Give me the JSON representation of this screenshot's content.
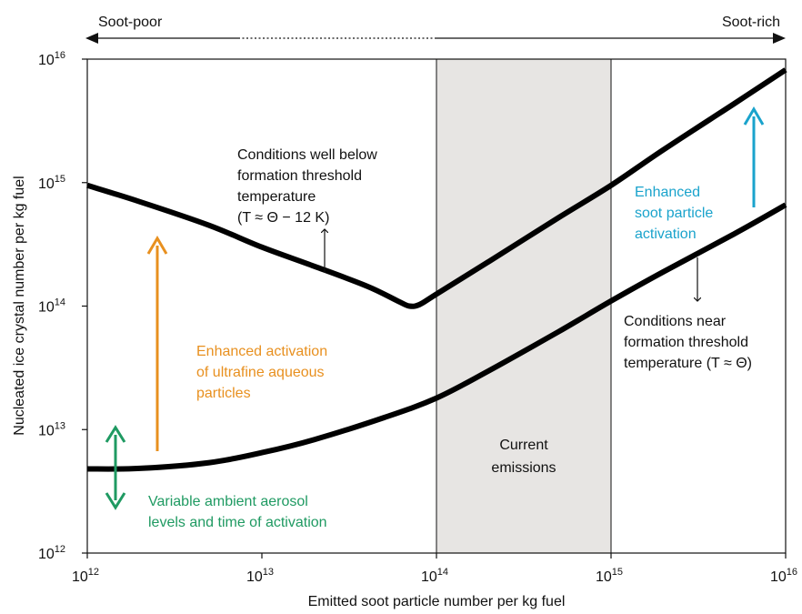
{
  "chart_data": {
    "type": "line",
    "xlabel": "Emitted soot particle number per kg fuel",
    "ylabel": "Nucleated ice crystal number per kg fuel",
    "x_scale": "log",
    "y_scale": "log",
    "xlim": [
      1000000000000.0,
      1e+16
    ],
    "ylim": [
      1000000000000.0,
      1e+16
    ],
    "grid": false,
    "x_ticks": [
      {
        "value": 1000000000000.0,
        "base": "10",
        "exp": "12"
      },
      {
        "value": 10000000000000.0,
        "base": "10",
        "exp": "13"
      },
      {
        "value": 100000000000000.0,
        "base": "10",
        "exp": "14"
      },
      {
        "value": 1000000000000000.0,
        "base": "10",
        "exp": "15"
      },
      {
        "value": 1e+16,
        "base": "10",
        "exp": "16"
      }
    ],
    "y_ticks": [
      {
        "value": 1000000000000.0,
        "base": "10",
        "exp": "12"
      },
      {
        "value": 10000000000000.0,
        "base": "10",
        "exp": "13"
      },
      {
        "value": 100000000000000.0,
        "base": "10",
        "exp": "14"
      },
      {
        "value": 1000000000000000.0,
        "base": "10",
        "exp": "15"
      },
      {
        "value": 1e+16,
        "base": "10",
        "exp": "16"
      }
    ],
    "series": [
      {
        "color": "#000000",
        "x": [
          1000000000000.0,
          2000000000000.0,
          5000000000000.0,
          10000000000000.0,
          20000000000000.0,
          40000000000000.0,
          60000000000000.0,
          70000000000000.0,
          80000000000000.0,
          100000000000000.0,
          200000000000000.0,
          500000000000000.0,
          1000000000000000.0,
          2000000000000000.0,
          5000000000000000.0,
          1e+16
        ],
        "y": [
          950000000000000.0,
          700000000000000.0,
          450000000000000.0,
          300000000000000.0,
          210000000000000.0,
          145000000000000.0,
          110000000000000.0,
          100000000000000.0,
          103000000000000.0,
          125000000000000.0,
          230000000000000.0,
          520000000000000.0,
          950000000000000.0,
          1850000000000000.0,
          4300000000000000.0,
          8200000000000000.0
        ]
      },
      {
        "color": "#000000",
        "x": [
          1000000000000.0,
          2000000000000.0,
          5000000000000.0,
          10000000000000.0,
          20000000000000.0,
          50000000000000.0,
          100000000000000.0,
          200000000000000.0,
          500000000000000.0,
          1000000000000000.0,
          2000000000000000.0,
          5000000000000000.0,
          1e+16
        ],
        "y": [
          4800000000000.0,
          4850000000000.0,
          5400000000000.0,
          6500000000000.0,
          8300000000000.0,
          12500000000000.0,
          18000000000000.0,
          30000000000000.0,
          62000000000000.0,
          110000000000000.0,
          190000000000000.0,
          380000000000000.0,
          660000000000000.0
        ]
      }
    ],
    "shaded_region": {
      "x": [
        100000000000000.0,
        1000000000000000.0
      ],
      "color": "#e7e5e3",
      "label": [
        "Current",
        "emissions"
      ]
    },
    "top_axis": {
      "left": "Soot-poor",
      "right": "Soot-rich"
    },
    "annotations": [
      {
        "lines": [
          "Conditions well below",
          "formation threshold",
          "temperature",
          "(T ≈ Θ − 12 K)"
        ],
        "color": "#111111"
      },
      {
        "lines": [
          "Conditions near",
          "formation threshold",
          "temperature (T ≈ Θ)"
        ],
        "color": "#111111"
      },
      {
        "lines": [
          "Enhanced",
          "soot particle",
          "activation"
        ],
        "color": "#1aa3cc"
      },
      {
        "lines": [
          "Enhanced activation",
          "of ultrafine aqueous",
          "particles"
        ],
        "color": "#e8901f"
      },
      {
        "lines": [
          "Variable ambient aerosol",
          "levels and time of activation"
        ],
        "color": "#1f9a62"
      }
    ],
    "colors": {
      "orange": "#e8901f",
      "cyan": "#1aa3cc",
      "green": "#1f9a62",
      "shade": "#e7e5e3"
    }
  }
}
